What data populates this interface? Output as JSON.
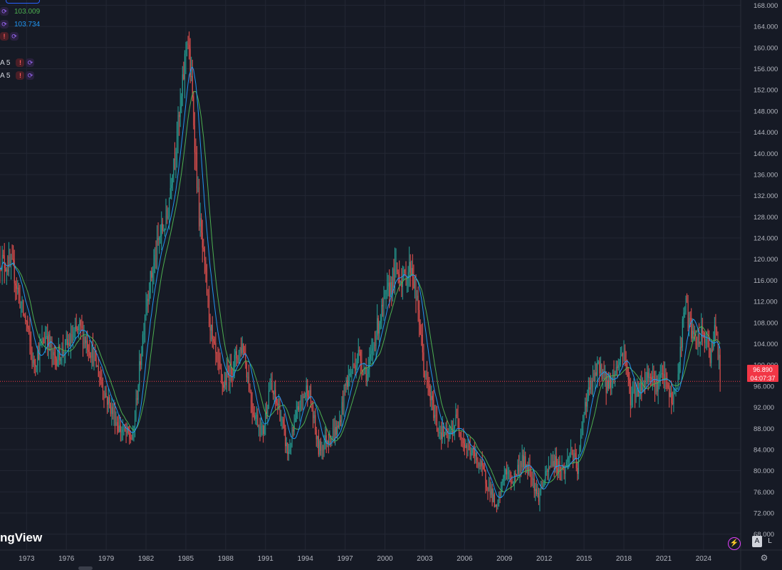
{
  "legend": {
    "ma1_value": "103.009",
    "ma1_color": "#4caf50",
    "ma2_value": "103.734",
    "ma2_color": "#2196f3",
    "row4_label": "A 5",
    "row5_label": "A 5"
  },
  "watermark": "ngView",
  "price_tag": {
    "price": "96.890",
    "countdown": "04:07:37"
  },
  "axis_buttons": {
    "auto": "A",
    "log": "L"
  },
  "colors": {
    "up": "#26a69a",
    "down": "#ef5350",
    "grid": "#232734",
    "background": "#161a25",
    "text": "#b2b5be"
  },
  "chart_data": {
    "type": "candlestick",
    "title": "",
    "xlabel": "",
    "ylabel": "",
    "ylim": [
      65.0,
      169.0
    ],
    "xlim": [
      1971.0,
      2026.8
    ],
    "y_ticks": [
      "68.000",
      "72.000",
      "76.000",
      "80.000",
      "84.000",
      "88.000",
      "92.000",
      "96.000",
      "100.000",
      "104.000",
      "108.000",
      "112.000",
      "116.000",
      "120.000",
      "124.000",
      "128.000",
      "132.000",
      "136.000",
      "140.000",
      "144.000",
      "148.000",
      "152.000",
      "156.000",
      "160.000",
      "164.000",
      "168.000"
    ],
    "x_ticks": [
      "1973",
      "1976",
      "1979",
      "1982",
      "1985",
      "1988",
      "1991",
      "1994",
      "1997",
      "2000",
      "2003",
      "2006",
      "2009",
      "2012",
      "2015",
      "2018",
      "2021",
      "2024"
    ],
    "last_price": 96.89,
    "grid": true,
    "anchors": {
      "x": [
        1971.0,
        1972.0,
        1972.7,
        1973.0,
        1973.5,
        1974.5,
        1975.0,
        1976.2,
        1977.0,
        1978.0,
        1979.0,
        1980.0,
        1981.0,
        1982.0,
        1983.0,
        1983.6,
        1984.0,
        1984.6,
        1985.1,
        1985.5,
        1986.0,
        1986.5,
        1987.0,
        1987.8,
        1988.5,
        1989.3,
        1990.0,
        1990.8,
        1991.3,
        1992.0,
        1992.7,
        1993.5,
        1994.2,
        1995.0,
        1995.6,
        1996.5,
        1997.0,
        1998.0,
        1998.7,
        1999.3,
        2000.0,
        2000.8,
        2001.4,
        2002.0,
        2002.6,
        2003.0,
        2004.0,
        2004.8,
        2005.4,
        2006.0,
        2007.0,
        2008.0,
        2008.4,
        2009.0,
        2009.6,
        2010.3,
        2011.0,
        2011.5,
        2012.0,
        2012.6,
        2013.5,
        2014.0,
        2014.5,
        2015.0,
        2015.5,
        2016.2,
        2016.7,
        2017.2,
        2018.0,
        2018.5,
        2019.3,
        2020.0,
        2020.4,
        2021.0,
        2021.6,
        2022.0,
        2022.6,
        2022.9,
        2023.4,
        2024.0,
        2024.5,
        2024.9,
        2025.3
      ],
      "y": [
        120.0,
        118.0,
        110.0,
        108.0,
        100.0,
        106.0,
        101.0,
        104.0,
        107.0,
        102.0,
        94.0,
        88.0,
        86.0,
        112.0,
        124.0,
        128.0,
        138.0,
        148.0,
        163.0,
        150.0,
        128.0,
        116.0,
        104.0,
        96.0,
        100.0,
        104.0,
        92.0,
        87.0,
        96.0,
        92.0,
        83.0,
        92.0,
        96.0,
        84.0,
        86.0,
        88.0,
        96.0,
        102.0,
        98.0,
        106.0,
        112.0,
        118.0,
        116.0,
        119.0,
        108.0,
        98.0,
        88.0,
        86.0,
        90.0,
        85.0,
        82.0,
        76.0,
        72.0,
        80.0,
        78.0,
        82.0,
        80.0,
        75.0,
        78.0,
        82.0,
        80.0,
        84.0,
        80.0,
        92.0,
        96.0,
        100.0,
        96.0,
        98.0,
        103.0,
        94.0,
        96.0,
        99.0,
        96.0,
        98.0,
        93.0,
        96.0,
        112.0,
        108.0,
        104.0,
        106.0,
        102.0,
        107.0,
        96.9
      ]
    },
    "series": [
      {
        "name": "",
        "type": "moving-average",
        "color": "#4caf50",
        "last_value": 103.009,
        "period": 18
      },
      {
        "name": "",
        "type": "moving-average",
        "color": "#2196f3",
        "last_value": 103.734,
        "period": 11
      }
    ]
  }
}
